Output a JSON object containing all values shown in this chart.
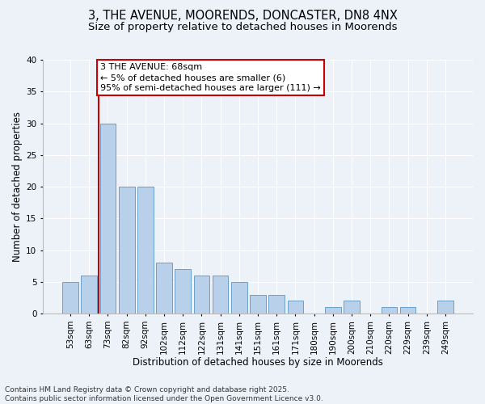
{
  "title_line1": "3, THE AVENUE, MOORENDS, DONCASTER, DN8 4NX",
  "title_line2": "Size of property relative to detached houses in Moorends",
  "xlabel": "Distribution of detached houses by size in Moorends",
  "ylabel": "Number of detached properties",
  "categories": [
    "53sqm",
    "63sqm",
    "73sqm",
    "82sqm",
    "92sqm",
    "102sqm",
    "112sqm",
    "122sqm",
    "131sqm",
    "141sqm",
    "151sqm",
    "161sqm",
    "171sqm",
    "180sqm",
    "190sqm",
    "200sqm",
    "210sqm",
    "220sqm",
    "229sqm",
    "239sqm",
    "249sqm"
  ],
  "values": [
    5,
    6,
    30,
    20,
    20,
    8,
    7,
    6,
    6,
    5,
    3,
    3,
    2,
    0,
    1,
    2,
    0,
    1,
    1,
    0,
    2
  ],
  "bar_color": "#b8d0ea",
  "bar_edge_color": "#6a9fc8",
  "vline_x_idx": 1.5,
  "vline_color": "#cc0000",
  "annotation_text": "3 THE AVENUE: 68sqm\n← 5% of detached houses are smaller (6)\n95% of semi-detached houses are larger (111) →",
  "annotation_box_color": "#ffffff",
  "annotation_box_edge_color": "#cc0000",
  "ylim": [
    0,
    40
  ],
  "yticks": [
    0,
    5,
    10,
    15,
    20,
    25,
    30,
    35,
    40
  ],
  "background_color": "#edf2f9",
  "footer_text": "Contains HM Land Registry data © Crown copyright and database right 2025.\nContains public sector information licensed under the Open Government Licence v3.0.",
  "grid_color": "#ffffff",
  "title_fontsize": 10.5,
  "subtitle_fontsize": 9.5,
  "axis_label_fontsize": 8.5,
  "tick_fontsize": 7.5,
  "annotation_fontsize": 8,
  "footer_fontsize": 6.5
}
